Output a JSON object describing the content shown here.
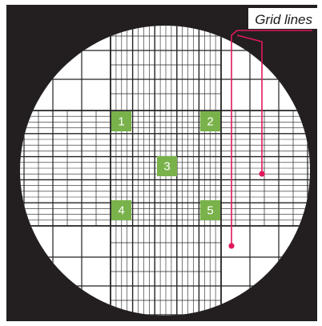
{
  "diagram": {
    "label": "Grid lines",
    "squares": [
      "1",
      "2",
      "3",
      "4",
      "5"
    ],
    "colors": {
      "background": "#231f20",
      "field": "#ffffff",
      "grid": "#222222",
      "square": "#79b24a",
      "accent": "#e0195a"
    }
  }
}
